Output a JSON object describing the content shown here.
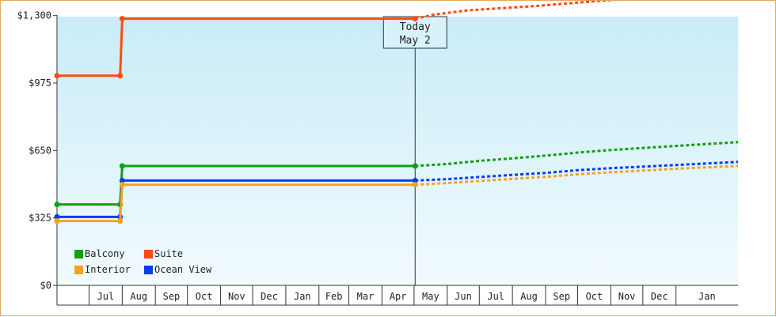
{
  "colors": {
    "background_top": "#c9ecf8",
    "background_bottom": "#f2fbfe",
    "frame_border": "#e0a85a",
    "axis": "#333333",
    "today_box_fill": "#d7f2fb"
  },
  "today_marker": {
    "line1": "Today",
    "line2": "May 2",
    "date": "2025-05-02"
  },
  "chart_data": {
    "type": "line",
    "title": "",
    "xlabel": "",
    "ylabel": "",
    "y_axis": {
      "min": 0,
      "max": 1295,
      "ticks": [
        0,
        325,
        650,
        975,
        1300
      ],
      "tick_labels": [
        "$0",
        "$325",
        "$650",
        "$975",
        "$1,300"
      ]
    },
    "x_axis": {
      "min": "2024-06-01",
      "max": "2026-02-28",
      "month_labels": [
        "Jul",
        "Aug",
        "Sep",
        "Oct",
        "Nov",
        "Dec",
        "Jan",
        "Feb",
        "Mar",
        "Apr",
        "May",
        "Jun",
        "Jul",
        "Aug",
        "Sep",
        "Oct",
        "Nov",
        "Dec",
        "Jan"
      ],
      "month_starts": [
        "2024-07-01",
        "2024-08-01",
        "2024-09-01",
        "2024-10-01",
        "2024-11-01",
        "2024-12-01",
        "2025-01-01",
        "2025-02-01",
        "2025-03-01",
        "2025-04-01",
        "2025-05-01",
        "2025-06-01",
        "2025-07-01",
        "2025-08-01",
        "2025-09-01",
        "2025-10-01",
        "2025-11-01",
        "2025-12-01",
        "2026-01-01"
      ]
    },
    "grid": false,
    "legend_position": "bottom-left",
    "series": [
      {
        "name": "Suite",
        "color": "#ff4a14",
        "history": [
          [
            "2024-06-01",
            1010
          ],
          [
            "2024-07-30",
            1010
          ],
          [
            "2024-08-01",
            1285
          ],
          [
            "2025-05-02",
            1285
          ]
        ],
        "forecast": [
          [
            "2025-05-02",
            1285
          ],
          [
            "2025-05-20",
            1305
          ],
          [
            "2025-06-20",
            1325
          ],
          [
            "2025-07-20",
            1335
          ],
          [
            "2025-08-20",
            1345
          ],
          [
            "2025-09-20",
            1358
          ],
          [
            "2025-10-20",
            1370
          ],
          [
            "2025-11-20",
            1382
          ],
          [
            "2025-12-20",
            1392
          ],
          [
            "2026-01-20",
            1405
          ],
          [
            "2026-02-28",
            1415
          ]
        ]
      },
      {
        "name": "Balcony",
        "color": "#11a011",
        "history": [
          [
            "2024-06-01",
            390
          ],
          [
            "2024-07-30",
            390
          ],
          [
            "2024-08-01",
            575
          ],
          [
            "2025-05-02",
            575
          ]
        ],
        "forecast": [
          [
            "2025-05-02",
            575
          ],
          [
            "2025-06-01",
            585
          ],
          [
            "2025-07-01",
            600
          ],
          [
            "2025-08-01",
            612
          ],
          [
            "2025-09-01",
            625
          ],
          [
            "2025-10-01",
            640
          ],
          [
            "2025-11-01",
            652
          ],
          [
            "2025-12-01",
            662
          ],
          [
            "2026-01-01",
            672
          ],
          [
            "2026-02-28",
            690
          ]
        ]
      },
      {
        "name": "Ocean View",
        "color": "#0a3df2",
        "history": [
          [
            "2024-06-01",
            330
          ],
          [
            "2024-07-30",
            330
          ],
          [
            "2024-08-01",
            505
          ],
          [
            "2025-05-02",
            505
          ]
        ],
        "forecast": [
          [
            "2025-05-02",
            505
          ],
          [
            "2025-06-01",
            512
          ],
          [
            "2025-07-01",
            522
          ],
          [
            "2025-08-01",
            532
          ],
          [
            "2025-09-01",
            542
          ],
          [
            "2025-10-01",
            555
          ],
          [
            "2025-11-01",
            565
          ],
          [
            "2025-12-01",
            572
          ],
          [
            "2026-01-01",
            580
          ],
          [
            "2026-02-28",
            595
          ]
        ]
      },
      {
        "name": "Interior",
        "color": "#f5a21e",
        "history": [
          [
            "2024-06-01",
            310
          ],
          [
            "2024-07-30",
            310
          ],
          [
            "2024-08-01",
            485
          ],
          [
            "2025-05-02",
            485
          ]
        ],
        "forecast": [
          [
            "2025-05-02",
            485
          ],
          [
            "2025-06-01",
            493
          ],
          [
            "2025-07-01",
            503
          ],
          [
            "2025-08-01",
            513
          ],
          [
            "2025-09-01",
            523
          ],
          [
            "2025-10-01",
            535
          ],
          [
            "2025-11-01",
            545
          ],
          [
            "2025-12-01",
            553
          ],
          [
            "2026-01-01",
            562
          ],
          [
            "2026-02-28",
            575
          ]
        ]
      }
    ],
    "legend_rows": [
      [
        "Balcony",
        "Suite"
      ],
      [
        "Interior",
        "Ocean View"
      ]
    ]
  }
}
